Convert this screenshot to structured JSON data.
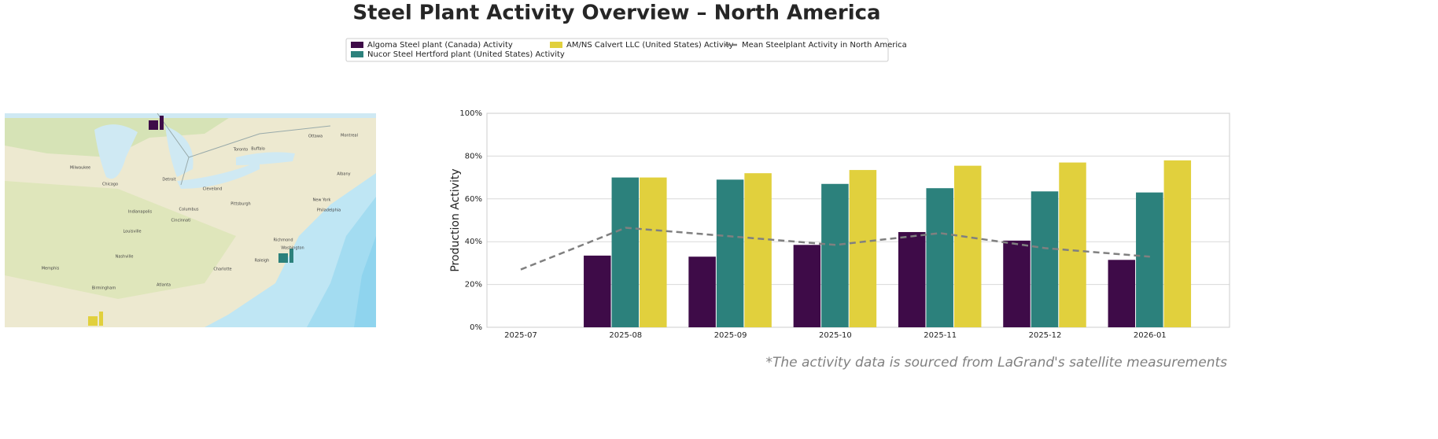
{
  "title": "Steel Plant Activity Overview – North America",
  "footnote": "*The activity data is sourced from LaGrand's satellite measurements",
  "map": {
    "labels": [
      "Chicago",
      "Milwaukee",
      "Detroit",
      "Toronto",
      "Ottawa",
      "Montreal",
      "Buffalo",
      "Cleveland",
      "Pittsburgh",
      "Columbus",
      "Indianapolis",
      "Cincinnati",
      "Louisville",
      "Nashville",
      "Memphis",
      "Atlanta",
      "Charlotte",
      "Richmond",
      "Washington",
      "Philadelphia",
      "New York",
      "Albany",
      "Raleigh",
      "Birmingham"
    ]
  },
  "chart_data": {
    "type": "bar",
    "ylabel": "Production Activity",
    "categories": [
      "2025-07",
      "2025-08",
      "2025-09",
      "2025-10",
      "2025-11",
      "2025-12",
      "2026-01"
    ],
    "series": [
      {
        "name": "Algoma Steel plant (Canada) Activity",
        "color": "#3e0b48",
        "values": [
          null,
          33.5,
          33,
          38.5,
          44.5,
          40.5,
          31.5
        ]
      },
      {
        "name": "Nucor Steel Hertford plant (United States) Activity",
        "color": "#2c817c",
        "values": [
          null,
          70,
          69,
          67,
          65,
          63.5,
          63
        ]
      },
      {
        "name": "AM/NS Calvert LLC (United States) Activity",
        "color": "#e1d03d",
        "values": [
          null,
          70,
          72,
          73.5,
          75.5,
          77,
          78
        ]
      },
      {
        "name": "Mean Steelplant Activity in North America",
        "color": "#808080",
        "type": "line",
        "dashed": true,
        "values": [
          27,
          46.5,
          42.5,
          38.5,
          44,
          37,
          33
        ]
      }
    ],
    "ylim": [
      0,
      100
    ],
    "yticks": [
      {
        "value": 0,
        "label": "0%"
      },
      {
        "value": 20,
        "label": "20%"
      },
      {
        "value": 40,
        "label": "40%"
      },
      {
        "value": 60,
        "label": "60%"
      },
      {
        "value": 80,
        "label": "80%"
      },
      {
        "value": 100,
        "label": "100%"
      }
    ],
    "grid": true
  }
}
